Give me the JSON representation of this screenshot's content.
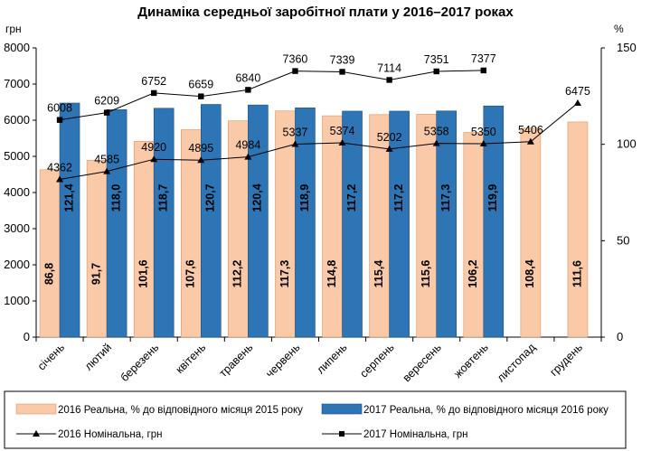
{
  "chart_data": {
    "type": "bar",
    "title": "Динаміка середньої заробітної плати у 2016–2017 роках",
    "ylabel_left": "грн",
    "ylabel_right": "%",
    "ylim_left": [
      0,
      8000
    ],
    "yticks_left": [
      0,
      1000,
      2000,
      3000,
      4000,
      5000,
      6000,
      7000,
      8000
    ],
    "ylim_right": [
      0,
      150
    ],
    "yticks_right": [
      0,
      50,
      100,
      150
    ],
    "categories": [
      "січень",
      "лютий",
      "березень",
      "квітень",
      "травень",
      "червень",
      "липень",
      "серпень",
      "вересень",
      "жовтень",
      "листопад",
      "грудень"
    ],
    "series": [
      {
        "name": "2016 Реальна, % до відповідного місяця 2015 року",
        "kind": "bar",
        "axis": "right",
        "color": "#f9c9a8",
        "values": [
          86.8,
          91.7,
          101.6,
          107.6,
          112.2,
          117.3,
          114.8,
          115.4,
          115.6,
          106.2,
          108.4,
          111.6
        ],
        "labels": [
          "86,8",
          "91,7",
          "101,6",
          "107,6",
          "112,2",
          "117,3",
          "114,8",
          "115,4",
          "115,6",
          "106,2",
          "108,4",
          "111,6"
        ]
      },
      {
        "name": "2017 Реальна, % до відповідного місяця 2016 року",
        "kind": "bar",
        "axis": "right",
        "color": "#2e75b6",
        "values": [
          121.4,
          118.0,
          118.7,
          120.7,
          120.4,
          118.9,
          117.2,
          117.2,
          117.3,
          119.9,
          null,
          null
        ],
        "labels": [
          "121,4",
          "118,0",
          "118,7",
          "120,7",
          "120,4",
          "118,9",
          "117,2",
          "117,2",
          "117,3",
          "119,9",
          null,
          null
        ]
      },
      {
        "name": "2016 Номінальна, грн",
        "kind": "line",
        "axis": "left",
        "marker": "triangle",
        "values": [
          4362,
          4585,
          4920,
          4895,
          4984,
          5337,
          5374,
          5202,
          5358,
          5350,
          5406,
          6475
        ],
        "labels": [
          "4362",
          "4585",
          "4920",
          "4895",
          "4984",
          "5337",
          "5374",
          "5202",
          "5358",
          "5350",
          "5406",
          "6475"
        ]
      },
      {
        "name": "2017 Номінальна, грн",
        "kind": "line",
        "axis": "left",
        "marker": "square",
        "values": [
          6008,
          6209,
          6752,
          6659,
          6840,
          7360,
          7339,
          7114,
          7351,
          7377,
          null,
          null
        ],
        "labels": [
          "6008",
          "6209",
          "6752",
          "6659",
          "6840",
          "7360",
          "7339",
          "7114",
          "7351",
          "7377",
          null,
          null
        ]
      }
    ],
    "grid": false,
    "legend_position": "bottom"
  }
}
